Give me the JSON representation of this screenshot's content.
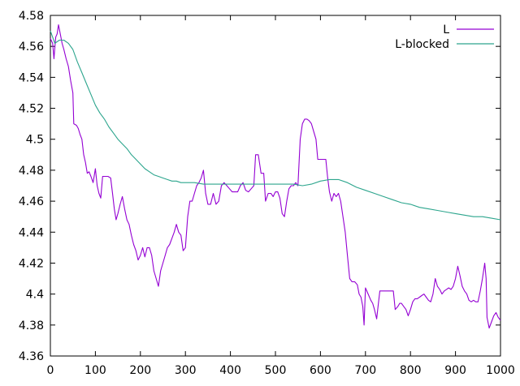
{
  "chart_data": {
    "type": "line",
    "title": "",
    "xlabel": "",
    "ylabel": "",
    "xlim": [
      0,
      1000
    ],
    "ylim": [
      4.36,
      4.58
    ],
    "x_ticks": [
      0,
      100,
      200,
      300,
      400,
      500,
      600,
      700,
      800,
      900,
      1000
    ],
    "x_tick_labels": [
      "0",
      "100",
      "200",
      "300",
      "400",
      "500",
      "600",
      "700",
      "800",
      "900",
      "1000"
    ],
    "y_ticks": [
      4.36,
      4.38,
      4.4,
      4.42,
      4.44,
      4.46,
      4.48,
      4.5,
      4.52,
      4.54,
      4.56,
      4.58
    ],
    "y_tick_labels": [
      "4.36",
      "4.38",
      "4.4",
      "4.42",
      "4.44",
      "4.46",
      "4.48",
      "4.5",
      "4.52",
      "4.54",
      "4.56",
      "4.58"
    ],
    "grid": false,
    "legend_position": "top-right",
    "series": [
      {
        "name": "L",
        "color": "#9400d3",
        "points": [
          [
            0,
            4.565
          ],
          [
            5,
            4.562
          ],
          [
            8,
            4.552
          ],
          [
            12,
            4.566
          ],
          [
            15,
            4.568
          ],
          [
            18,
            4.574
          ],
          [
            22,
            4.568
          ],
          [
            26,
            4.562
          ],
          [
            30,
            4.558
          ],
          [
            35,
            4.552
          ],
          [
            40,
            4.547
          ],
          [
            45,
            4.538
          ],
          [
            50,
            4.53
          ],
          [
            52,
            4.51
          ],
          [
            58,
            4.509
          ],
          [
            62,
            4.507
          ],
          [
            66,
            4.503
          ],
          [
            70,
            4.5
          ],
          [
            74,
            4.49
          ],
          [
            78,
            4.485
          ],
          [
            82,
            4.478
          ],
          [
            86,
            4.479
          ],
          [
            90,
            4.476
          ],
          [
            95,
            4.472
          ],
          [
            100,
            4.481
          ],
          [
            104,
            4.47
          ],
          [
            108,
            4.465
          ],
          [
            112,
            4.462
          ],
          [
            116,
            4.476
          ],
          [
            122,
            4.476
          ],
          [
            128,
            4.476
          ],
          [
            134,
            4.475
          ],
          [
            138,
            4.465
          ],
          [
            142,
            4.455
          ],
          [
            146,
            4.448
          ],
          [
            150,
            4.452
          ],
          [
            155,
            4.458
          ],
          [
            160,
            4.463
          ],
          [
            165,
            4.455
          ],
          [
            170,
            4.448
          ],
          [
            175,
            4.445
          ],
          [
            180,
            4.438
          ],
          [
            185,
            4.432
          ],
          [
            190,
            4.428
          ],
          [
            195,
            4.422
          ],
          [
            200,
            4.425
          ],
          [
            205,
            4.43
          ],
          [
            210,
            4.424
          ],
          [
            215,
            4.43
          ],
          [
            220,
            4.43
          ],
          [
            225,
            4.425
          ],
          [
            230,
            4.415
          ],
          [
            235,
            4.41
          ],
          [
            240,
            4.405
          ],
          [
            245,
            4.415
          ],
          [
            250,
            4.42
          ],
          [
            255,
            4.425
          ],
          [
            260,
            4.43
          ],
          [
            265,
            4.432
          ],
          [
            270,
            4.436
          ],
          [
            275,
            4.44
          ],
          [
            280,
            4.445
          ],
          [
            285,
            4.44
          ],
          [
            290,
            4.438
          ],
          [
            295,
            4.428
          ],
          [
            300,
            4.43
          ],
          [
            305,
            4.45
          ],
          [
            310,
            4.46
          ],
          [
            315,
            4.46
          ],
          [
            320,
            4.465
          ],
          [
            325,
            4.47
          ],
          [
            330,
            4.472
          ],
          [
            335,
            4.475
          ],
          [
            340,
            4.48
          ],
          [
            345,
            4.465
          ],
          [
            350,
            4.458
          ],
          [
            356,
            4.458
          ],
          [
            362,
            4.465
          ],
          [
            368,
            4.458
          ],
          [
            374,
            4.46
          ],
          [
            380,
            4.47
          ],
          [
            386,
            4.472
          ],
          [
            392,
            4.47
          ],
          [
            398,
            4.468
          ],
          [
            404,
            4.466
          ],
          [
            410,
            4.466
          ],
          [
            416,
            4.466
          ],
          [
            422,
            4.47
          ],
          [
            428,
            4.472
          ],
          [
            434,
            4.467
          ],
          [
            440,
            4.466
          ],
          [
            446,
            4.468
          ],
          [
            452,
            4.47
          ],
          [
            456,
            4.49
          ],
          [
            462,
            4.49
          ],
          [
            468,
            4.478
          ],
          [
            474,
            4.478
          ],
          [
            478,
            4.46
          ],
          [
            484,
            4.465
          ],
          [
            490,
            4.465
          ],
          [
            495,
            4.463
          ],
          [
            500,
            4.466
          ],
          [
            505,
            4.466
          ],
          [
            510,
            4.462
          ],
          [
            515,
            4.452
          ],
          [
            520,
            4.45
          ],
          [
            525,
            4.46
          ],
          [
            530,
            4.468
          ],
          [
            535,
            4.47
          ],
          [
            540,
            4.47
          ],
          [
            545,
            4.472
          ],
          [
            550,
            4.47
          ],
          [
            555,
            4.5
          ],
          [
            560,
            4.51
          ],
          [
            565,
            4.513
          ],
          [
            570,
            4.513
          ],
          [
            575,
            4.512
          ],
          [
            580,
            4.51
          ],
          [
            585,
            4.505
          ],
          [
            590,
            4.5
          ],
          [
            594,
            4.487
          ],
          [
            600,
            4.487
          ],
          [
            606,
            4.487
          ],
          [
            612,
            4.487
          ],
          [
            616,
            4.475
          ],
          [
            620,
            4.466
          ],
          [
            625,
            4.46
          ],
          [
            630,
            4.465
          ],
          [
            635,
            4.463
          ],
          [
            640,
            4.465
          ],
          [
            645,
            4.46
          ],
          [
            650,
            4.45
          ],
          [
            655,
            4.44
          ],
          [
            660,
            4.425
          ],
          [
            665,
            4.41
          ],
          [
            670,
            4.408
          ],
          [
            676,
            4.408
          ],
          [
            682,
            4.406
          ],
          [
            686,
            4.4
          ],
          [
            690,
            4.398
          ],
          [
            694,
            4.392
          ],
          [
            697,
            4.38
          ],
          [
            700,
            4.404
          ],
          [
            706,
            4.4
          ],
          [
            712,
            4.396
          ],
          [
            716,
            4.394
          ],
          [
            720,
            4.39
          ],
          [
            725,
            4.384
          ],
          [
            728,
            4.392
          ],
          [
            732,
            4.402
          ],
          [
            738,
            4.402
          ],
          [
            744,
            4.402
          ],
          [
            750,
            4.402
          ],
          [
            756,
            4.402
          ],
          [
            762,
            4.402
          ],
          [
            766,
            4.39
          ],
          [
            772,
            4.392
          ],
          [
            776,
            4.394
          ],
          [
            780,
            4.394
          ],
          [
            785,
            4.392
          ],
          [
            790,
            4.39
          ],
          [
            795,
            4.386
          ],
          [
            800,
            4.39
          ],
          [
            805,
            4.395
          ],
          [
            810,
            4.397
          ],
          [
            815,
            4.397
          ],
          [
            820,
            4.398
          ],
          [
            825,
            4.399
          ],
          [
            830,
            4.4
          ],
          [
            835,
            4.398
          ],
          [
            840,
            4.396
          ],
          [
            845,
            4.395
          ],
          [
            850,
            4.4
          ],
          [
            855,
            4.41
          ],
          [
            860,
            4.405
          ],
          [
            865,
            4.403
          ],
          [
            870,
            4.4
          ],
          [
            875,
            4.402
          ],
          [
            880,
            4.403
          ],
          [
            885,
            4.404
          ],
          [
            890,
            4.403
          ],
          [
            895,
            4.405
          ],
          [
            900,
            4.41
          ],
          [
            905,
            4.418
          ],
          [
            910,
            4.412
          ],
          [
            915,
            4.405
          ],
          [
            920,
            4.402
          ],
          [
            925,
            4.4
          ],
          [
            930,
            4.396
          ],
          [
            935,
            4.395
          ],
          [
            940,
            4.396
          ],
          [
            945,
            4.395
          ],
          [
            950,
            4.395
          ],
          [
            955,
            4.402
          ],
          [
            960,
            4.41
          ],
          [
            965,
            4.42
          ],
          [
            968,
            4.41
          ],
          [
            970,
            4.385
          ],
          [
            975,
            4.378
          ],
          [
            980,
            4.382
          ],
          [
            985,
            4.386
          ],
          [
            990,
            4.388
          ],
          [
            995,
            4.385
          ],
          [
            1000,
            4.383
          ]
        ]
      },
      {
        "name": "L-blocked",
        "color": "#2ca58d",
        "points": [
          [
            0,
            4.57
          ],
          [
            10,
            4.562
          ],
          [
            20,
            4.564
          ],
          [
            30,
            4.564
          ],
          [
            40,
            4.562
          ],
          [
            50,
            4.558
          ],
          [
            60,
            4.55
          ],
          [
            70,
            4.543
          ],
          [
            80,
            4.536
          ],
          [
            90,
            4.529
          ],
          [
            100,
            4.522
          ],
          [
            110,
            4.517
          ],
          [
            120,
            4.513
          ],
          [
            130,
            4.508
          ],
          [
            140,
            4.504
          ],
          [
            150,
            4.5
          ],
          [
            160,
            4.497
          ],
          [
            170,
            4.494
          ],
          [
            180,
            4.49
          ],
          [
            190,
            4.487
          ],
          [
            200,
            4.484
          ],
          [
            210,
            4.481
          ],
          [
            220,
            4.479
          ],
          [
            230,
            4.477
          ],
          [
            240,
            4.476
          ],
          [
            250,
            4.475
          ],
          [
            260,
            4.474
          ],
          [
            270,
            4.473
          ],
          [
            280,
            4.473
          ],
          [
            290,
            4.472
          ],
          [
            300,
            4.472
          ],
          [
            320,
            4.472
          ],
          [
            340,
            4.471
          ],
          [
            360,
            4.471
          ],
          [
            380,
            4.471
          ],
          [
            400,
            4.471
          ],
          [
            420,
            4.471
          ],
          [
            440,
            4.471
          ],
          [
            460,
            4.471
          ],
          [
            480,
            4.471
          ],
          [
            500,
            4.471
          ],
          [
            520,
            4.471
          ],
          [
            540,
            4.471
          ],
          [
            560,
            4.47
          ],
          [
            580,
            4.471
          ],
          [
            600,
            4.473
          ],
          [
            620,
            4.474
          ],
          [
            640,
            4.474
          ],
          [
            660,
            4.472
          ],
          [
            680,
            4.469
          ],
          [
            700,
            4.467
          ],
          [
            720,
            4.465
          ],
          [
            740,
            4.463
          ],
          [
            760,
            4.461
          ],
          [
            780,
            4.459
          ],
          [
            800,
            4.458
          ],
          [
            820,
            4.456
          ],
          [
            840,
            4.455
          ],
          [
            860,
            4.454
          ],
          [
            880,
            4.453
          ],
          [
            900,
            4.452
          ],
          [
            920,
            4.451
          ],
          [
            940,
            4.45
          ],
          [
            960,
            4.45
          ],
          [
            980,
            4.449
          ],
          [
            1000,
            4.448
          ]
        ]
      }
    ]
  }
}
